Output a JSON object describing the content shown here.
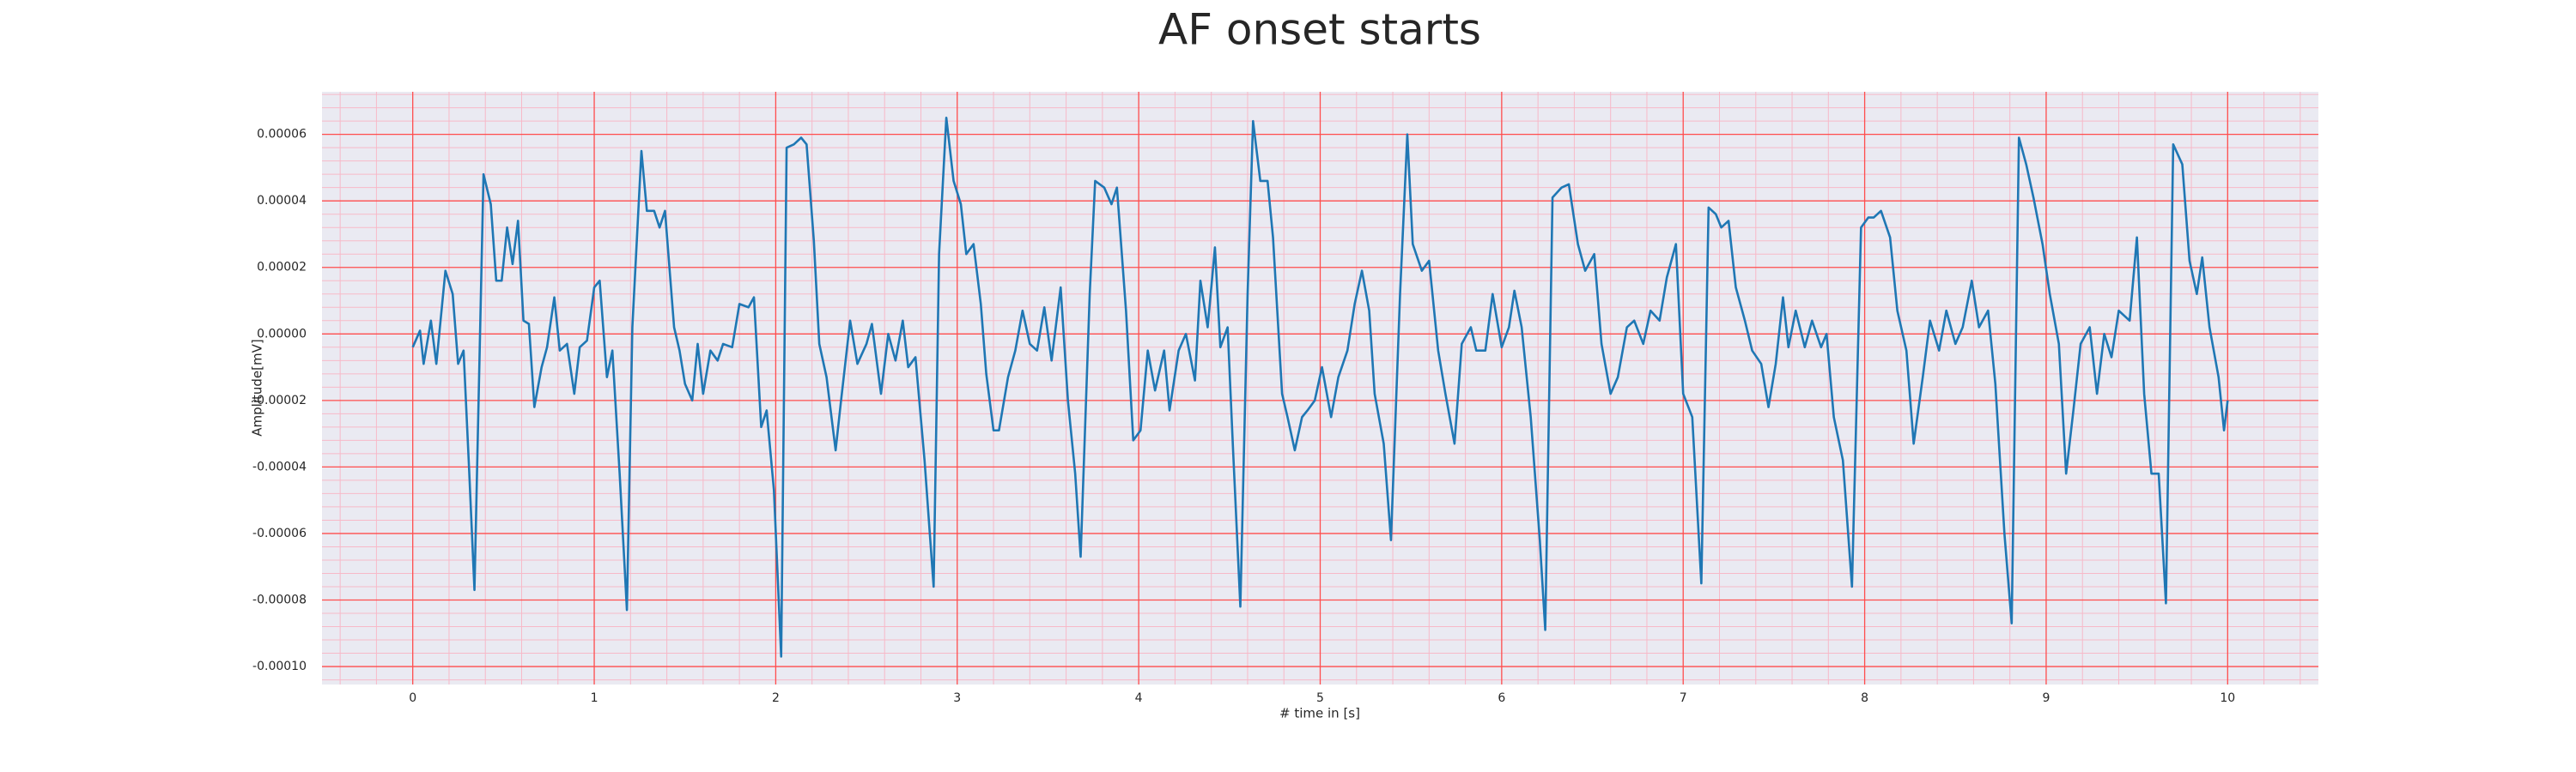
{
  "chart_data": {
    "type": "line",
    "title": "AF onset starts",
    "x_label": "# time in [s]",
    "y_label": "Amplitude[mV]",
    "xlim": [
      -0.5,
      10.5
    ],
    "ylim": [
      -0.0001054,
      7.28e-05
    ],
    "xticks": [
      0,
      1,
      2,
      3,
      4,
      5,
      6,
      7,
      8,
      9,
      10
    ],
    "yticks": [
      {
        "value": -0.0001,
        "label": "-0.00010"
      },
      {
        "value": -8e-05,
        "label": "-0.00008"
      },
      {
        "value": -6e-05,
        "label": "-0.00006"
      },
      {
        "value": -4e-05,
        "label": "-0.00004"
      },
      {
        "value": -2e-05,
        "label": "-0.00002"
      },
      {
        "value": 0,
        "label": "0.00000"
      },
      {
        "value": 2e-05,
        "label": "0.00002"
      },
      {
        "value": 4e-05,
        "label": "0.00004"
      },
      {
        "value": 6e-05,
        "label": "0.00006"
      }
    ],
    "grid": true,
    "minor_grid": true,
    "background": "#eaeaf2",
    "grid_color": "#ff4d4d",
    "minor_grid_color": "#f7b9c8",
    "x": [
      0.0,
      0.04,
      0.06,
      0.1,
      0.13,
      0.18,
      0.22,
      0.25,
      0.28,
      0.31,
      0.34,
      0.39,
      0.43,
      0.46,
      0.49,
      0.52,
      0.55,
      0.58,
      0.61,
      0.64,
      0.67,
      0.71,
      0.74,
      0.78,
      0.81,
      0.85,
      0.89,
      0.92,
      0.96,
      1.0,
      1.03,
      1.07,
      1.1,
      1.14,
      1.18,
      1.21,
      1.26,
      1.29,
      1.33,
      1.36,
      1.39,
      1.44,
      1.47,
      1.5,
      1.54,
      1.57,
      1.6,
      1.64,
      1.68,
      1.71,
      1.76,
      1.8,
      1.85,
      1.88,
      1.92,
      1.95,
      1.99,
      2.03,
      2.06,
      2.1,
      2.14,
      2.17,
      2.21,
      2.24,
      2.28,
      2.33,
      2.36,
      2.41,
      2.45,
      2.5,
      2.53,
      2.58,
      2.62,
      2.66,
      2.7,
      2.73,
      2.77,
      2.82,
      2.87,
      2.9,
      2.94,
      2.98,
      3.02,
      3.05,
      3.09,
      3.13,
      3.16,
      3.2,
      3.23,
      3.28,
      3.32,
      3.36,
      3.4,
      3.44,
      3.48,
      3.52,
      3.57,
      3.61,
      3.65,
      3.68,
      3.73,
      3.76,
      3.81,
      3.85,
      3.88,
      3.93,
      3.97,
      4.01,
      4.05,
      4.09,
      4.14,
      4.17,
      4.22,
      4.26,
      4.31,
      4.34,
      4.38,
      4.42,
      4.45,
      4.49,
      4.52,
      4.56,
      4.6,
      4.63,
      4.67,
      4.71,
      4.74,
      4.79,
      4.82,
      4.86,
      4.9,
      4.93,
      4.97,
      5.01,
      5.06,
      5.1,
      5.15,
      5.19,
      5.23,
      5.27,
      5.3,
      5.35,
      5.39,
      5.44,
      5.48,
      5.51,
      5.56,
      5.6,
      5.65,
      5.69,
      5.74,
      5.78,
      5.83,
      5.86,
      5.91,
      5.95,
      6.0,
      6.04,
      6.07,
      6.11,
      6.16,
      6.21,
      6.24,
      6.28,
      6.33,
      6.37,
      6.42,
      6.46,
      6.51,
      6.55,
      6.6,
      6.64,
      6.69,
      6.73,
      6.78,
      6.82,
      6.87,
      6.91,
      6.96,
      7.0,
      7.05,
      7.1,
      7.14,
      7.18,
      7.21,
      7.25,
      7.29,
      7.34,
      7.38,
      7.43,
      7.47,
      7.51,
      7.55,
      7.58,
      7.62,
      7.67,
      7.71,
      7.76,
      7.79,
      7.83,
      7.88,
      7.93,
      7.98,
      8.02,
      8.05,
      8.09,
      8.14,
      8.18,
      8.23,
      8.27,
      8.32,
      8.36,
      8.41,
      8.45,
      8.5,
      8.54,
      8.59,
      8.63,
      8.68,
      8.72,
      8.77,
      8.81,
      8.85,
      8.89,
      8.93,
      8.98,
      9.02,
      9.07,
      9.11,
      9.15,
      9.19,
      9.24,
      9.28,
      9.32,
      9.36,
      9.4,
      9.46,
      9.5,
      9.54,
      9.58,
      9.62,
      9.66,
      9.7,
      9.75,
      9.79,
      9.83,
      9.86,
      9.9,
      9.95,
      9.98,
      10.0
    ],
    "series": [
      {
        "color": "#1f77b4",
        "values": [
          -4e-06,
          1e-06,
          -9e-06,
          4e-06,
          -9e-06,
          1.9e-05,
          1.2e-05,
          -9e-06,
          -5e-06,
          -4e-05,
          -7.7e-05,
          4.8e-05,
          3.9e-05,
          1.6e-05,
          1.6e-05,
          3.2e-05,
          2.1e-05,
          3.4e-05,
          4e-06,
          3e-06,
          -2.2e-05,
          -1e-05,
          -4e-06,
          1.1e-05,
          -5e-06,
          -3e-06,
          -1.8e-05,
          -4e-06,
          -2e-06,
          1.4e-05,
          1.6e-05,
          -1.3e-05,
          -5e-06,
          -4.2e-05,
          -8.3e-05,
          2e-06,
          5.5e-05,
          3.7e-05,
          3.7e-05,
          3.2e-05,
          3.7e-05,
          2e-06,
          -5e-06,
          -1.5e-05,
          -2e-05,
          -3e-06,
          -1.8e-05,
          -5e-06,
          -8e-06,
          -3e-06,
          -4e-06,
          9e-06,
          8e-06,
          1.1e-05,
          -2.8e-05,
          -2.3e-05,
          -4.7e-05,
          -9.7e-05,
          5.6e-05,
          5.7e-05,
          5.9e-05,
          5.7e-05,
          2.8e-05,
          -3e-06,
          -1.3e-05,
          -3.5e-05,
          -2e-05,
          4e-06,
          -9e-06,
          -3e-06,
          3e-06,
          -1.8e-05,
          0,
          -8e-06,
          4e-06,
          -1e-05,
          -7e-06,
          -3.8e-05,
          -7.6e-05,
          2.4e-05,
          6.5e-05,
          4.6e-05,
          3.9e-05,
          2.4e-05,
          2.7e-05,
          9e-06,
          -1.2e-05,
          -2.9e-05,
          -2.9e-05,
          -1.3e-05,
          -5e-06,
          7e-06,
          -3e-06,
          -5e-06,
          8e-06,
          -8e-06,
          1.4e-05,
          -2e-05,
          -4.2e-05,
          -6.7e-05,
          1.2e-05,
          4.6e-05,
          4.4e-05,
          3.9e-05,
          4.4e-05,
          7e-06,
          -3.2e-05,
          -2.9e-05,
          -5e-06,
          -1.7e-05,
          -5e-06,
          -2.3e-05,
          -5e-06,
          0,
          -1.4e-05,
          1.6e-05,
          2e-06,
          2.6e-05,
          -4e-06,
          2e-06,
          -3.5e-05,
          -8.2e-05,
          1.2e-05,
          6.4e-05,
          4.6e-05,
          4.6e-05,
          2.9e-05,
          -1.8e-05,
          -2.5e-05,
          -3.5e-05,
          -2.5e-05,
          -2.3e-05,
          -2e-05,
          -1e-05,
          -2.5e-05,
          -1.3e-05,
          -5e-06,
          9e-06,
          1.9e-05,
          7e-06,
          -1.8e-05,
          -3.3e-05,
          -6.2e-05,
          1.2e-05,
          6e-05,
          2.7e-05,
          1.9e-05,
          2.2e-05,
          -5e-06,
          -1.8e-05,
          -3.3e-05,
          -3e-06,
          2e-06,
          -5e-06,
          -5e-06,
          1.2e-05,
          -4e-06,
          2e-06,
          1.3e-05,
          2e-06,
          -2.5e-05,
          -6.2e-05,
          -8.9e-05,
          4.1e-05,
          4.4e-05,
          4.5e-05,
          2.7e-05,
          1.9e-05,
          2.4e-05,
          -3e-06,
          -1.8e-05,
          -1.3e-05,
          2e-06,
          4e-06,
          -3e-06,
          7e-06,
          4e-06,
          1.7e-05,
          2.7e-05,
          -1.8e-05,
          -2.5e-05,
          -7.5e-05,
          3.8e-05,
          3.6e-05,
          3.2e-05,
          3.4e-05,
          1.4e-05,
          4e-06,
          -5e-06,
          -9e-06,
          -2.2e-05,
          -9e-06,
          1.1e-05,
          -4e-06,
          7e-06,
          -4e-06,
          4e-06,
          -4e-06,
          0,
          -2.5e-05,
          -3.8e-05,
          -7.6e-05,
          3.2e-05,
          3.5e-05,
          3.5e-05,
          3.7e-05,
          2.9e-05,
          7e-06,
          -5e-06,
          -3.3e-05,
          -1.3e-05,
          4e-06,
          -5e-06,
          7e-06,
          -3e-06,
          2e-06,
          1.6e-05,
          2e-06,
          7e-06,
          -1.5e-05,
          -6e-05,
          -8.7e-05,
          5.9e-05,
          5.1e-05,
          4.1e-05,
          2.7e-05,
          1.2e-05,
          -3e-06,
          -4.2e-05,
          -2.3e-05,
          -3e-06,
          2e-06,
          -1.8e-05,
          0,
          -7e-06,
          7e-06,
          4e-06,
          2.9e-05,
          -1.8e-05,
          -4.2e-05,
          -4.2e-05,
          -8.1e-05,
          5.7e-05,
          5.1e-05,
          2.2e-05,
          1.2e-05,
          2.3e-05,
          2e-06,
          -1.3e-05,
          -2.9e-05,
          -2e-05
        ]
      }
    ]
  }
}
